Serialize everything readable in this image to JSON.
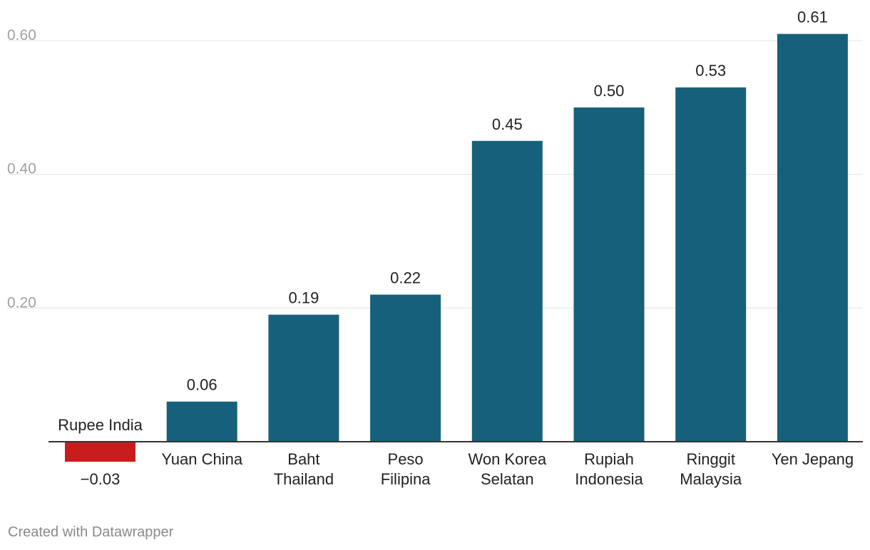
{
  "chart_data": {
    "type": "bar",
    "title": "",
    "xlabel": "",
    "ylabel": "",
    "categories": [
      [
        "Rupee India"
      ],
      [
        "Yuan China"
      ],
      [
        "Baht",
        "Thailand"
      ],
      [
        "Peso",
        "Filipina"
      ],
      [
        "Won Korea",
        "Selatan"
      ],
      [
        "Rupiah",
        "Indonesia"
      ],
      [
        "Ringgit",
        "Malaysia"
      ],
      [
        "Yen Jepang"
      ]
    ],
    "values": [
      -0.03,
      0.06,
      0.19,
      0.22,
      0.45,
      0.5,
      0.53,
      0.61
    ],
    "value_labels": [
      "−0.03",
      "0.06",
      "0.19",
      "0.22",
      "0.45",
      "0.50",
      "0.53",
      "0.61"
    ],
    "y_ticks": [
      0.2,
      0.4,
      0.6
    ],
    "y_tick_labels": [
      "0.20",
      "0.40",
      "0.60"
    ],
    "ylim": [
      -0.03,
      0.61
    ],
    "grid": true,
    "colors": {
      "positive": "#17607b",
      "negative": "#c71e1d",
      "grid": "#e3e3e3",
      "axis": "#333333",
      "tick_label": "#a0a0a0",
      "label": "#222222"
    }
  },
  "footer": {
    "credit": "Created with Datawrapper"
  }
}
